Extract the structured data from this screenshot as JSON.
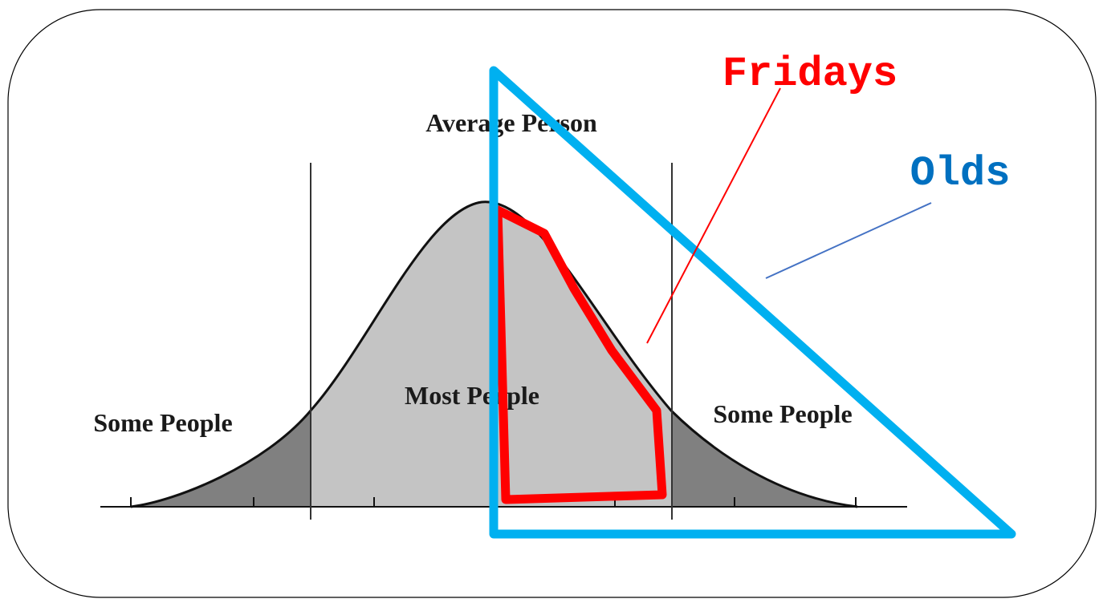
{
  "labels": {
    "average_person": "Average Person",
    "most_people": "Most People",
    "some_people_left": "Some People",
    "some_people_right": "Some People",
    "fridays": "Fridays",
    "olds": "Olds"
  },
  "colors": {
    "frame": "#000000",
    "curve": "#111111",
    "center_fill": "#c4c4c4",
    "tail_fill": "#808080",
    "fridays": "#ff0000",
    "olds": "#00b0f0",
    "olds_text": "#0070c0",
    "olds_pointer": "#4472c4"
  }
}
